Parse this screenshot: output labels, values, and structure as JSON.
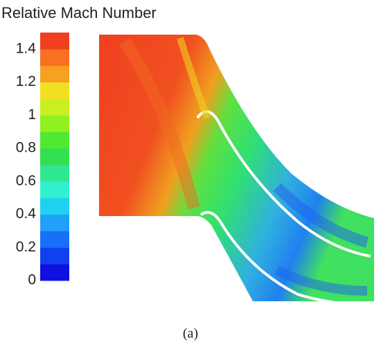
{
  "chart_data": {
    "type": "contour",
    "title": "Relative Mach Number",
    "caption": "(a)",
    "clim": [
      0,
      1.5
    ],
    "cticks": [
      0,
      0.2,
      0.4,
      0.6,
      0.8,
      1,
      1.2,
      1.4
    ],
    "colormap": [
      "#1010e0",
      "#1040f0",
      "#1870f8",
      "#20a0f8",
      "#20d0f0",
      "#30f0d0",
      "#30e890",
      "#30e050",
      "#50e830",
      "#90f020",
      "#c8f020",
      "#f0e020",
      "#f8a020",
      "#f87020",
      "#f04020"
    ]
  }
}
